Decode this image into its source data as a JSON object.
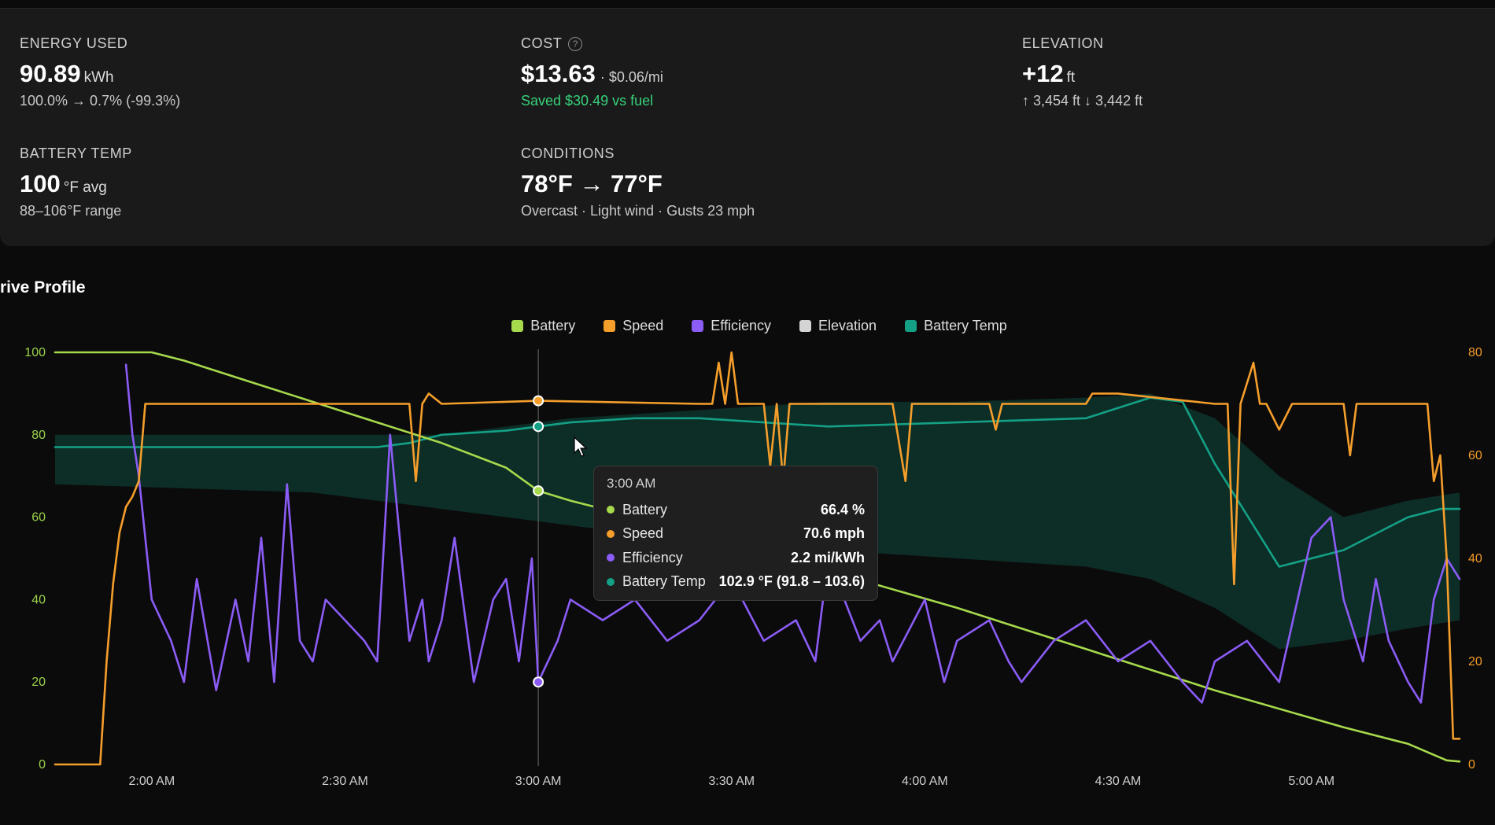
{
  "stats": {
    "energy": {
      "label": "ENERGY USED",
      "value": "90.89",
      "unit": "kWh",
      "sub": "100.0% → 0.7% (-99.3%)"
    },
    "cost": {
      "label": "COST",
      "value": "$13.63",
      "rate": "· $0.06/mi",
      "sub": "Saved $30.49 vs fuel"
    },
    "elevation": {
      "label": "ELEVATION",
      "value": "+12",
      "unit": "ft",
      "sub": "↑ 3,454 ft ↓ 3,442 ft"
    },
    "battery_temp": {
      "label": "BATTERY TEMP",
      "value": "100",
      "unit": "°F avg",
      "sub": "88–106°F range"
    },
    "conditions": {
      "label": "CONDITIONS",
      "value": "78°F → 77°F",
      "sub": "Overcast · Light wind · Gusts 23 mph"
    }
  },
  "section_title": "rive Profile",
  "legend": [
    {
      "label": "Battery",
      "color": "#a6d94c"
    },
    {
      "label": "Speed",
      "color": "#f59e2b"
    },
    {
      "label": "Efficiency",
      "color": "#8b5cf6"
    },
    {
      "label": "Elevation",
      "color": "#d4d4d4"
    },
    {
      "label": "Battery Temp",
      "color": "#14a085"
    }
  ],
  "tooltip": {
    "time": "3:00 AM",
    "rows": [
      {
        "name": "Battery",
        "value": "66.4 %",
        "color": "#a6d94c"
      },
      {
        "name": "Speed",
        "value": "70.6 mph",
        "color": "#f59e2b"
      },
      {
        "name": "Efficiency",
        "value": "2.2 mi/kWh",
        "color": "#8b5cf6"
      },
      {
        "name": "Battery Temp",
        "value": "102.9 °F (91.8 – 103.6)",
        "color": "#14a085"
      }
    ]
  },
  "chart_data": {
    "type": "line",
    "left_axis": {
      "ticks": [
        "100",
        "80",
        "60",
        "40",
        "20",
        "0"
      ],
      "ylim": [
        0,
        100
      ]
    },
    "right_axis": {
      "ticks": [
        "80",
        "60",
        "40",
        "20",
        "0"
      ],
      "ylim": [
        0,
        80
      ]
    },
    "x_ticks": [
      "2:00 AM",
      "2:30 AM",
      "3:00 AM",
      "3:30 AM",
      "4:00 AM",
      "4:30 AM",
      "5:00 AM"
    ],
    "x_range_minutes": [
      0,
      218
    ],
    "cursor_x": 75,
    "series": [
      {
        "name": "Battery",
        "axis": "left",
        "color": "#a6d94c",
        "x": [
          0,
          15,
          20,
          30,
          40,
          50,
          60,
          70,
          75,
          80,
          100,
          120,
          140,
          160,
          180,
          200,
          210,
          216,
          218
        ],
        "y": [
          100,
          100,
          98,
          93,
          88,
          83,
          78,
          72,
          66.4,
          64,
          56,
          47,
          38,
          28,
          18,
          9,
          5,
          1,
          0.7
        ]
      },
      {
        "name": "Speed",
        "axis": "right",
        "color": "#f59e2b",
        "x": [
          0,
          7,
          8,
          9,
          10,
          11,
          12,
          13,
          14,
          55,
          56,
          57,
          58,
          60,
          75,
          100,
          102,
          103,
          104,
          105,
          106,
          110,
          111,
          112,
          113,
          114,
          130,
          132,
          133,
          134,
          145,
          146,
          147,
          148,
          160,
          161,
          165,
          180,
          182,
          183,
          184,
          186,
          187,
          188,
          190,
          192,
          193,
          194,
          195,
          196,
          200,
          201,
          202,
          205,
          213,
          214,
          215,
          216,
          217,
          218
        ],
        "y": [
          0,
          0,
          20,
          35,
          45,
          50,
          52,
          55,
          70,
          70,
          55,
          70,
          72,
          70,
          70.6,
          70,
          70,
          78,
          70,
          80,
          70,
          70,
          58,
          70,
          55,
          70,
          70,
          55,
          70,
          70,
          70,
          65,
          70,
          70,
          70,
          72,
          72,
          70,
          70,
          35,
          70,
          78,
          70,
          70,
          65,
          70,
          70,
          70,
          70,
          70,
          70,
          60,
          70,
          70,
          70,
          55,
          60,
          40,
          5,
          5
        ]
      },
      {
        "name": "Efficiency",
        "axis": "left",
        "color": "#8b5cf6",
        "x": [
          0,
          5,
          10,
          11,
          12,
          13,
          14,
          15,
          18,
          20,
          22,
          25,
          28,
          30,
          32,
          34,
          36,
          38,
          40,
          42,
          45,
          48,
          50,
          52,
          55,
          57,
          58,
          60,
          62,
          65,
          68,
          70,
          72,
          74,
          75,
          78,
          80,
          85,
          88,
          90,
          95,
          100,
          105,
          110,
          115,
          118,
          120,
          125,
          128,
          130,
          135,
          138,
          140,
          145,
          148,
          150,
          155,
          160,
          165,
          170,
          175,
          178,
          180,
          185,
          190,
          195,
          198,
          200,
          203,
          205,
          207,
          210,
          212,
          214,
          216,
          218
        ],
        "y": [
          null,
          null,
          null,
          97,
          80,
          70,
          55,
          40,
          30,
          20,
          45,
          18,
          40,
          25,
          55,
          20,
          68,
          30,
          25,
          40,
          35,
          30,
          25,
          80,
          30,
          40,
          25,
          35,
          55,
          20,
          40,
          45,
          25,
          50,
          20,
          30,
          40,
          35,
          38,
          40,
          30,
          35,
          45,
          30,
          35,
          25,
          50,
          30,
          35,
          25,
          40,
          20,
          30,
          35,
          25,
          20,
          30,
          35,
          25,
          30,
          20,
          15,
          25,
          30,
          20,
          55,
          60,
          40,
          25,
          45,
          30,
          20,
          15,
          40,
          50,
          45
        ]
      },
      {
        "name": "Battery Temp",
        "axis": "left",
        "color": "#14a085",
        "x": [
          0,
          20,
          30,
          40,
          50,
          55,
          60,
          70,
          75,
          80,
          90,
          100,
          120,
          140,
          160,
          170,
          175,
          180,
          190,
          200,
          210,
          215,
          218
        ],
        "y": [
          77,
          77,
          77,
          77,
          77,
          78,
          80,
          81,
          82,
          83,
          84,
          84,
          82,
          83,
          84,
          89,
          88,
          73,
          48,
          52,
          60,
          62,
          62
        ]
      }
    ],
    "temp_band": {
      "x": [
        0,
        40,
        60,
        80,
        100,
        120,
        140,
        160,
        170,
        180,
        190,
        200,
        210,
        218
      ],
      "upper": [
        80,
        80,
        80,
        84,
        86,
        88,
        88,
        89,
        90,
        84,
        70,
        60,
        64,
        66
      ],
      "lower": [
        68,
        66,
        62,
        58,
        54,
        52,
        50,
        48,
        45,
        38,
        28,
        30,
        33,
        35
      ]
    }
  }
}
